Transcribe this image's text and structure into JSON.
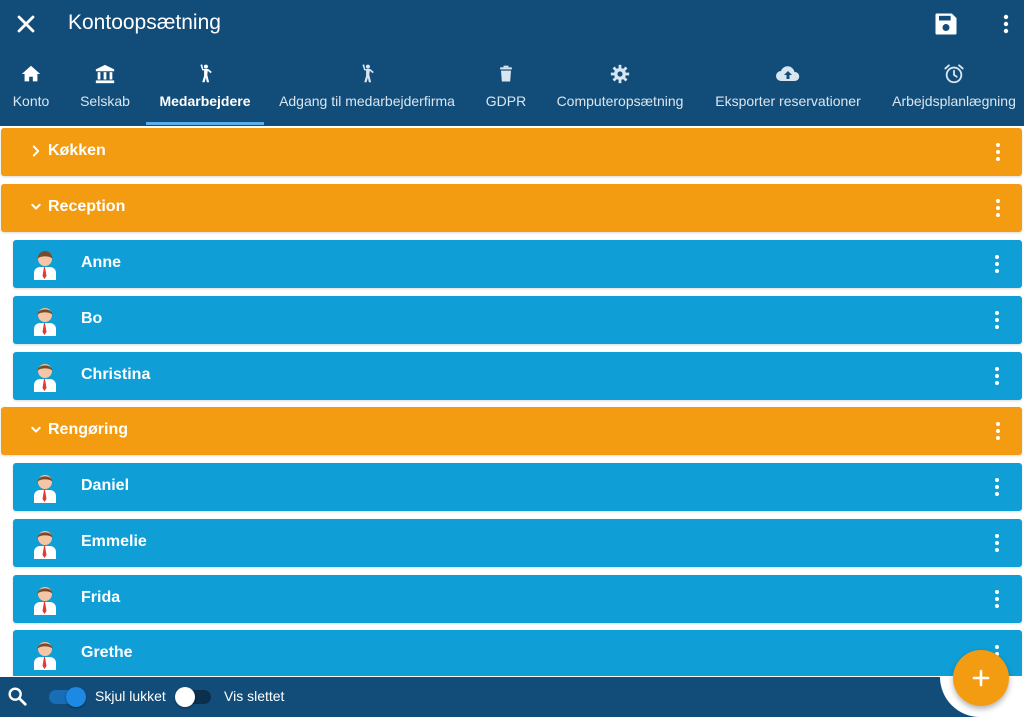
{
  "header": {
    "title": "Kontoopsætning",
    "close_icon": "close-icon",
    "save_icon": "save-icon",
    "menu_icon": "more-vert-icon"
  },
  "tabs": [
    {
      "label": "Konto",
      "icon": "home-icon",
      "active": false
    },
    {
      "label": "Selskab",
      "icon": "bank-icon",
      "active": false
    },
    {
      "label": "Medarbejdere",
      "icon": "person-waving-icon",
      "active": true
    },
    {
      "label": "Adgang til medarbejderfirma",
      "icon": "person-waving-icon",
      "active": false
    },
    {
      "label": "GDPR",
      "icon": "trash-icon",
      "active": false
    },
    {
      "label": "Computeropsætning",
      "icon": "gear-icon",
      "active": false
    },
    {
      "label": "Eksporter reservationer",
      "icon": "cloud-upload-icon",
      "active": false
    },
    {
      "label": "Arbejdsplanlægning",
      "icon": "alarm-clock-icon",
      "active": false
    }
  ],
  "groups": [
    {
      "name": "Køkken",
      "expanded": false,
      "employees": []
    },
    {
      "name": "Reception",
      "expanded": true,
      "employees": [
        "Anne",
        "Bo",
        "Christina"
      ]
    },
    {
      "name": "Rengøring",
      "expanded": true,
      "employees": [
        "Daniel",
        "Emmelie",
        "Frida",
        "Grethe"
      ]
    }
  ],
  "footer": {
    "search_icon": "search-icon",
    "toggle_hide_closed": {
      "label": "Skjul lukket",
      "on": true
    },
    "toggle_show_deleted": {
      "label": "Vis slettet",
      "on": false
    },
    "fab_icon": "plus-icon"
  },
  "colors": {
    "header": "#124d7a",
    "group": "#f39c12",
    "employee": "#0f9fd6",
    "accent": "#1e88e5",
    "fab": "#f39c12"
  }
}
